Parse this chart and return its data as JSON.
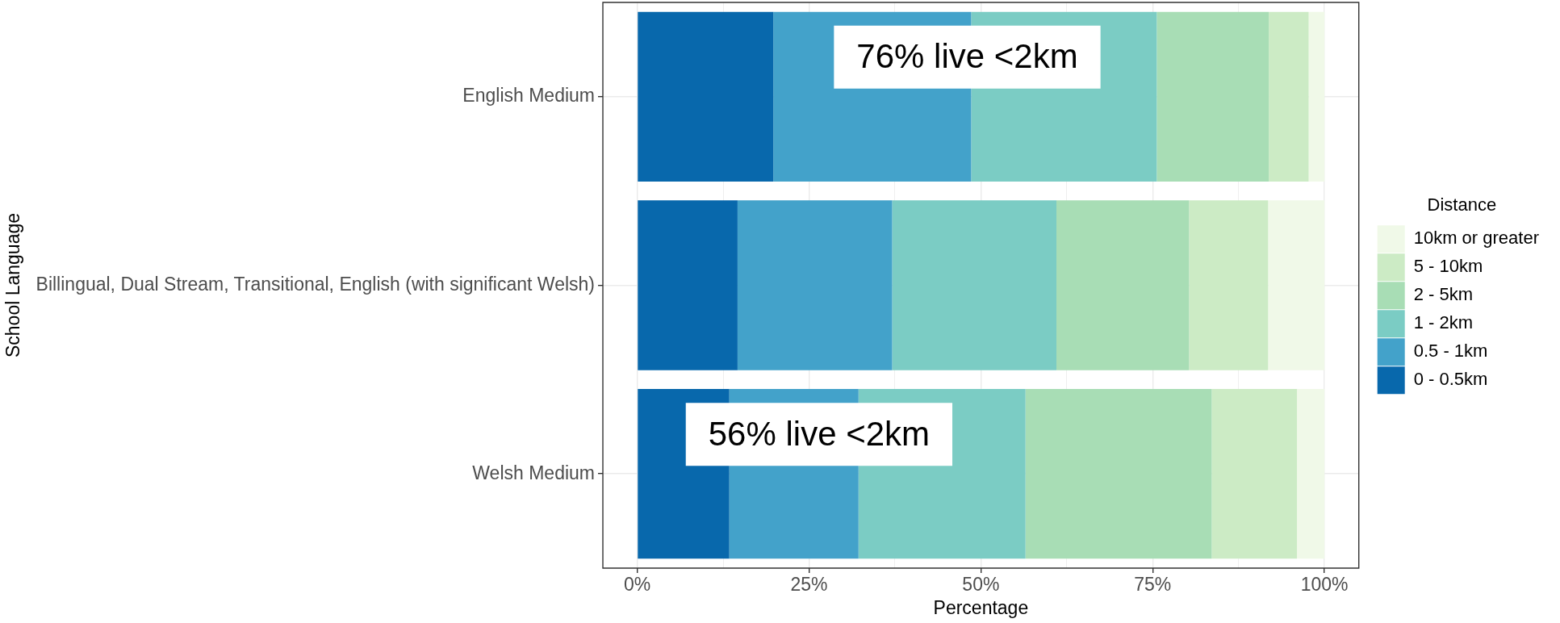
{
  "chart_data": {
    "type": "bar",
    "orientation": "horizontal",
    "stacked": true,
    "xlabel": "Percentage",
    "ylabel": "School Language",
    "legend_title": "Distance",
    "legend": "right",
    "grid": true,
    "categories": [
      "English Medium",
      "Billingual, Dual Stream, Transitional, English (with significant Welsh)",
      "Welsh Medium"
    ],
    "xlim": [
      -5,
      105
    ],
    "xticks": [
      {
        "value": 0,
        "label": "0%"
      },
      {
        "value": 12.5,
        "label": null
      },
      {
        "value": 25,
        "label": "25%"
      },
      {
        "value": 37.5,
        "label": null
      },
      {
        "value": 50,
        "label": "50%"
      },
      {
        "value": 62.5,
        "label": null
      },
      {
        "value": 75,
        "label": "75%"
      },
      {
        "value": 87.5,
        "label": null
      },
      {
        "value": 100,
        "label": "100%"
      }
    ],
    "series": [
      {
        "name": "0 - 0.5km",
        "color": "#0868ac",
        "values": [
          19.8,
          14.6,
          13.4
        ]
      },
      {
        "name": "0.5 - 1km",
        "color": "#43a2ca",
        "values": [
          28.8,
          22.5,
          18.8
        ]
      },
      {
        "name": "1 - 2km",
        "color": "#7bccc4",
        "values": [
          27.0,
          23.9,
          24.3
        ]
      },
      {
        "name": "2 - 5km",
        "color": "#a8ddb5",
        "values": [
          16.3,
          19.3,
          27.1
        ]
      },
      {
        "name": "5 - 10km",
        "color": "#ccebc5",
        "values": [
          5.8,
          11.5,
          12.4
        ]
      },
      {
        "name": "10km or greater",
        "color": "#f0f9e8",
        "values": [
          2.3,
          8.2,
          4.0
        ]
      }
    ],
    "annotations": [
      "76% live <2km",
      "56% live <2km"
    ]
  }
}
